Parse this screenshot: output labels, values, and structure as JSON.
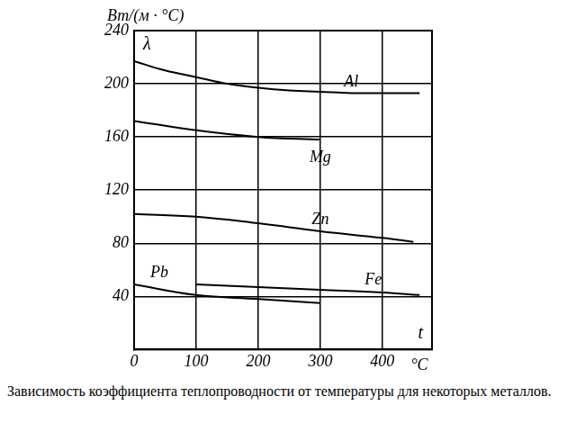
{
  "chart_data": {
    "type": "line",
    "title": "Зависимость коэффициента теплопроводности от температуры для некоторых металлов.",
    "xlabel": "°C",
    "ylabel": "Вт/(м · °С)",
    "annotations": [
      "λ",
      "t"
    ],
    "series": [
      {
        "name": "Al",
        "color": "#000000",
        "x": [
          0,
          50,
          100,
          150,
          200,
          250,
          300,
          350,
          400,
          460
        ],
        "values": [
          217,
          210,
          205,
          200,
          197,
          195,
          194,
          193,
          193,
          193
        ]
      },
      {
        "name": "Mg",
        "color": "#000000",
        "x": [
          0,
          100,
          200,
          300
        ],
        "values": [
          172,
          165,
          160,
          158
        ]
      },
      {
        "name": "Zn",
        "color": "#000000",
        "x": [
          0,
          100,
          200,
          300,
          400,
          450
        ],
        "values": [
          102,
          100,
          95,
          89,
          84,
          81
        ]
      },
      {
        "name": "Pb",
        "color": "#000000",
        "x": [
          0,
          100,
          200,
          300
        ],
        "values": [
          49,
          41,
          38,
          35
        ]
      },
      {
        "name": "Fe",
        "color": "#000000",
        "x": [
          100,
          200,
          300,
          400,
          460
        ],
        "values": [
          49,
          47,
          45,
          43,
          41
        ]
      }
    ],
    "xlim": [
      0,
      480
    ],
    "xticks": [
      0,
      100,
      200,
      300,
      400
    ],
    "ylim": [
      0,
      240
    ],
    "yticks": [
      40,
      80,
      120,
      160,
      200,
      240
    ],
    "grid": true
  }
}
